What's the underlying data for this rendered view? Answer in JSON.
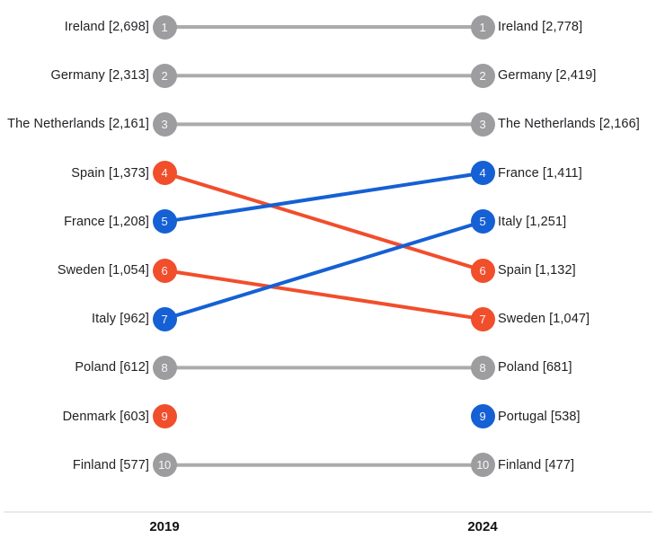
{
  "colors": {
    "gray": "#9d9da0",
    "orange": "#f14e2c",
    "blue": "#1560d4",
    "line_gray": "#ababab",
    "axis_line": "#eaeaea",
    "text": "#212126"
  },
  "chart_data": {
    "type": "line",
    "subtype": "slope-rank-chart",
    "x": [
      "2019",
      "2024"
    ],
    "legend": "none",
    "grid": "off",
    "left_items": [
      {
        "rank": 1,
        "country": "Ireland",
        "value": 2698,
        "display": "Ireland [2,698]",
        "color": "gray"
      },
      {
        "rank": 2,
        "country": "Germany",
        "value": 2313,
        "display": "Germany [2,313]",
        "color": "gray"
      },
      {
        "rank": 3,
        "country": "The Netherlands",
        "value": 2161,
        "display": "The Netherlands [2,161]",
        "color": "gray"
      },
      {
        "rank": 4,
        "country": "Spain",
        "value": 1373,
        "display": "Spain [1,373]",
        "color": "orange"
      },
      {
        "rank": 5,
        "country": "France",
        "value": 1208,
        "display": "France [1,208]",
        "color": "blue"
      },
      {
        "rank": 6,
        "country": "Sweden",
        "value": 1054,
        "display": "Sweden [1,054]",
        "color": "orange"
      },
      {
        "rank": 7,
        "country": "Italy",
        "value": 962,
        "display": "Italy [962]",
        "color": "blue"
      },
      {
        "rank": 8,
        "country": "Poland",
        "value": 612,
        "display": "Poland [612]",
        "color": "gray"
      },
      {
        "rank": 9,
        "country": "Denmark",
        "value": 603,
        "display": "Denmark [603]",
        "color": "orange"
      },
      {
        "rank": 10,
        "country": "Finland",
        "value": 577,
        "display": "Finland [577]",
        "color": "gray"
      }
    ],
    "right_items": [
      {
        "rank": 1,
        "country": "Ireland",
        "value": 2778,
        "display": "Ireland [2,778]",
        "color": "gray"
      },
      {
        "rank": 2,
        "country": "Germany",
        "value": 2419,
        "display": "Germany [2,419]",
        "color": "gray"
      },
      {
        "rank": 3,
        "country": "The Netherlands",
        "value": 2166,
        "display": "The Netherlands [2,166]",
        "color": "gray"
      },
      {
        "rank": 4,
        "country": "France",
        "value": 1411,
        "display": "France [1,411]",
        "color": "blue"
      },
      {
        "rank": 5,
        "country": "Italy",
        "value": 1251,
        "display": "Italy [1,251]",
        "color": "blue"
      },
      {
        "rank": 6,
        "country": "Spain",
        "value": 1132,
        "display": "Spain [1,132]",
        "color": "orange"
      },
      {
        "rank": 7,
        "country": "Sweden",
        "value": 1047,
        "display": "Sweden [1,047]",
        "color": "orange"
      },
      {
        "rank": 8,
        "country": "Poland",
        "value": 681,
        "display": "Poland [681]",
        "color": "gray"
      },
      {
        "rank": 9,
        "country": "Portugal",
        "value": 538,
        "display": "Portugal [538]",
        "color": "blue"
      },
      {
        "rank": 10,
        "country": "Finland",
        "value": 477,
        "display": "Finland [477]",
        "color": "gray"
      }
    ],
    "links": [
      {
        "country": "Ireland",
        "from_rank": 1,
        "to_rank": 1,
        "color": "gray"
      },
      {
        "country": "Germany",
        "from_rank": 2,
        "to_rank": 2,
        "color": "gray"
      },
      {
        "country": "The Netherlands",
        "from_rank": 3,
        "to_rank": 3,
        "color": "gray"
      },
      {
        "country": "Spain",
        "from_rank": 4,
        "to_rank": 6,
        "color": "orange"
      },
      {
        "country": "France",
        "from_rank": 5,
        "to_rank": 4,
        "color": "blue"
      },
      {
        "country": "Sweden",
        "from_rank": 6,
        "to_rank": 7,
        "color": "orange"
      },
      {
        "country": "Italy",
        "from_rank": 7,
        "to_rank": 5,
        "color": "blue"
      },
      {
        "country": "Poland",
        "from_rank": 8,
        "to_rank": 8,
        "color": "gray"
      },
      {
        "country": "Finland",
        "from_rank": 10,
        "to_rank": 10,
        "color": "gray"
      }
    ]
  }
}
